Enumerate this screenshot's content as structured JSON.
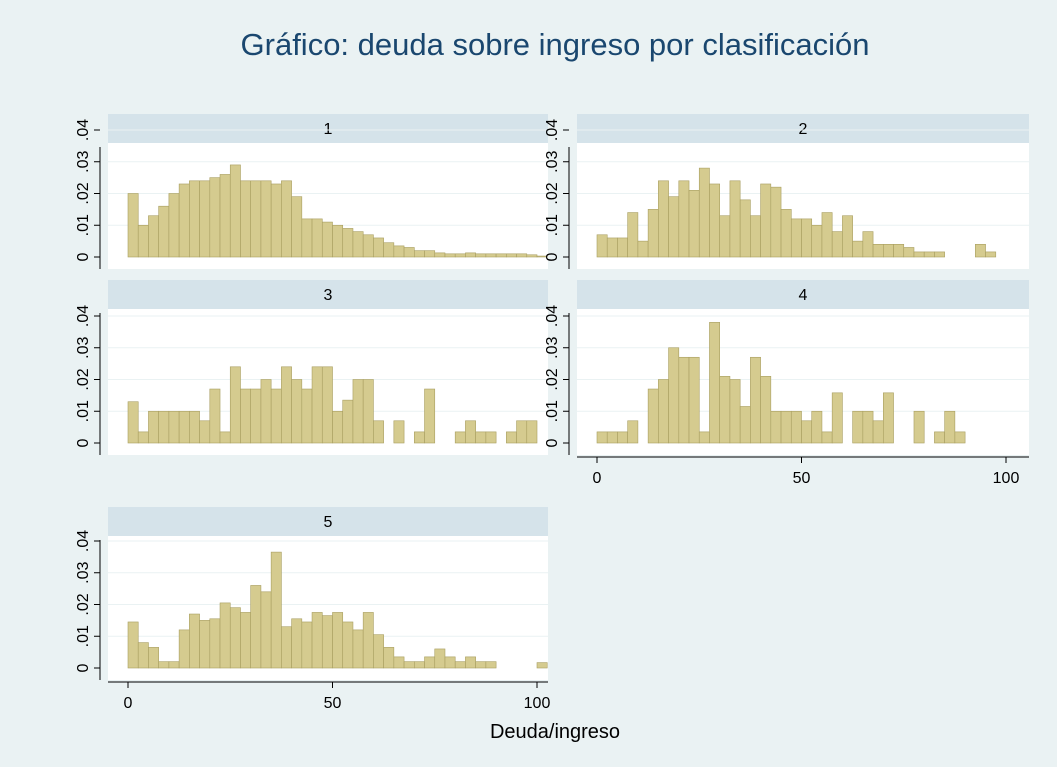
{
  "chart_data": {
    "type": "histogram",
    "title": "Gráfico:  deuda sobre ingreso por clasificación",
    "xlabel": "Deuda/ingreso",
    "color": "#d5cb8f",
    "edge_color": "#a89e60",
    "grid": true,
    "xlim": [
      -5,
      103
    ],
    "xticks": [
      0,
      50,
      100
    ],
    "ylim": [
      0,
      0.043
    ],
    "yticks": [
      0,
      {
        "value": 0.01,
        "label": ".01"
      },
      {
        "value": 0.02,
        "label": ".02"
      },
      {
        "value": 0.03,
        "label": ".03"
      },
      {
        "value": 0.04,
        "label": ".04"
      }
    ],
    "bins": [
      0,
      2.5,
      5,
      7.5,
      10,
      12.5,
      15,
      17.5,
      20,
      22.5,
      25,
      27.5,
      30,
      32.5,
      35,
      37.5,
      40,
      42.5,
      45,
      47.5,
      50,
      52.5,
      55,
      57.5,
      60,
      62.5,
      65,
      67.5,
      70,
      72.5,
      75,
      77.5,
      80,
      82.5,
      85,
      87.5,
      90,
      92.5,
      95,
      97.5,
      100,
      102.5
    ],
    "panels": [
      {
        "name": "1",
        "show_x_axis": false,
        "values": [
          0.02,
          0.01,
          0.013,
          0.016,
          0.02,
          0.023,
          0.024,
          0.024,
          0.025,
          0.026,
          0.029,
          0.024,
          0.024,
          0.024,
          0.023,
          0.024,
          0.019,
          0.012,
          0.012,
          0.011,
          0.01,
          0.009,
          0.008,
          0.007,
          0.006,
          0.0045,
          0.0035,
          0.003,
          0.002,
          0.002,
          0.0013,
          0.001,
          0.001,
          0.0013,
          0.001,
          0.001,
          0.001,
          0.001,
          0.001,
          0.0007,
          0.0003
        ]
      },
      {
        "name": "2",
        "show_x_axis": false,
        "values": [
          0.007,
          0.006,
          0.006,
          0.014,
          0.005,
          0.015,
          0.024,
          0.019,
          0.024,
          0.021,
          0.028,
          0.023,
          0.013,
          0.024,
          0.018,
          0.013,
          0.023,
          0.022,
          0.015,
          0.012,
          0.012,
          0.01,
          0.014,
          0.008,
          0.013,
          0.005,
          0.008,
          0.004,
          0.004,
          0.004,
          0.003,
          0.0016,
          0.0016,
          0.0016,
          0,
          0,
          0,
          0.004,
          0.0016,
          0,
          0
        ]
      },
      {
        "name": "3",
        "show_x_axis": false,
        "values": [
          0.013,
          0.0035,
          0.01,
          0.01,
          0.01,
          0.01,
          0.01,
          0.007,
          0.017,
          0.0035,
          0.024,
          0.017,
          0.017,
          0.02,
          0.017,
          0.024,
          0.02,
          0.017,
          0.024,
          0.024,
          0.01,
          0.0135,
          0.02,
          0.02,
          0.007,
          0,
          0.007,
          0,
          0.0035,
          0.017,
          0,
          0,
          0.0035,
          0.007,
          0.0035,
          0.0035,
          0,
          0.0035,
          0.007,
          0.007,
          0
        ]
      },
      {
        "name": "4",
        "show_x_axis": true,
        "values": [
          0.0035,
          0.0035,
          0.0035,
          0.007,
          0,
          0.017,
          0.02,
          0.03,
          0.027,
          0.027,
          0.0035,
          0.038,
          0.021,
          0.02,
          0.0115,
          0.027,
          0.021,
          0.01,
          0.01,
          0.01,
          0.007,
          0.01,
          0.0035,
          0.0158,
          0,
          0.01,
          0.01,
          0.007,
          0.0158,
          0,
          0,
          0.01,
          0,
          0.0035,
          0.01,
          0.0035,
          0,
          0,
          0,
          0,
          0
        ]
      },
      {
        "name": "5",
        "show_x_axis": true,
        "values": [
          0.0145,
          0.008,
          0.0065,
          0.002,
          0.002,
          0.012,
          0.017,
          0.015,
          0.0155,
          0.0205,
          0.019,
          0.0175,
          0.026,
          0.024,
          0.0365,
          0.013,
          0.0155,
          0.0145,
          0.0175,
          0.0165,
          0.0175,
          0.0145,
          0.012,
          0.0175,
          0.0105,
          0.0065,
          0.0035,
          0.002,
          0.002,
          0.0035,
          0.006,
          0.0035,
          0.002,
          0.0035,
          0.002,
          0.002,
          0,
          0,
          0,
          0,
          0.0017
        ]
      }
    ]
  }
}
